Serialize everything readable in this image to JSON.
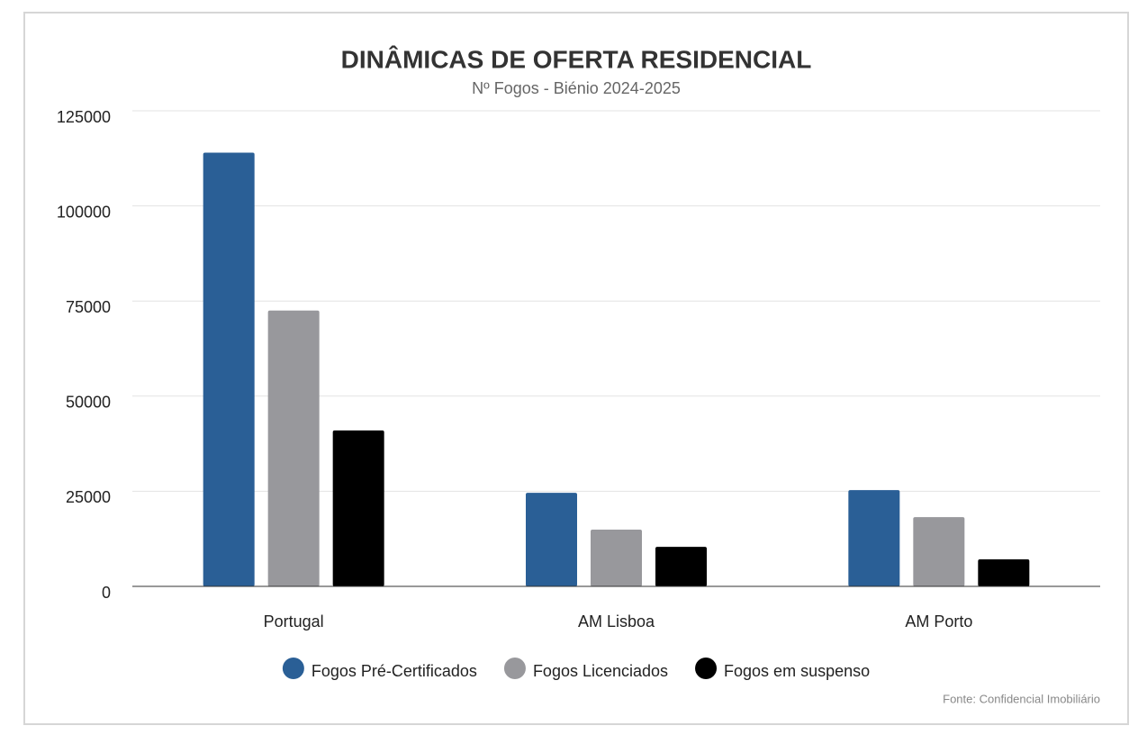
{
  "chart_data": {
    "type": "bar",
    "title": "DINÂMICAS DE OFERTA RESIDENCIAL",
    "subtitle": "Nº Fogos - Biénio 2024-2025",
    "categories": [
      "Portugal",
      "AM Lisboa",
      "AM Porto"
    ],
    "series": [
      {
        "name": "Fogos Pré-Certificados",
        "color": "#2a5f96",
        "values": [
          114000,
          24600,
          25300
        ]
      },
      {
        "name": "Fogos Licenciados",
        "color": "#98989c",
        "values": [
          72500,
          14900,
          18200
        ]
      },
      {
        "name": "Fogos em suspenso",
        "color": "#000000",
        "values": [
          41000,
          10400,
          7100
        ]
      }
    ],
    "ylim": [
      0,
      125000
    ],
    "yticks": [
      0,
      25000,
      50000,
      75000,
      100000,
      125000
    ],
    "grid": true,
    "legend": "bottom",
    "source": "Fonte: Confidencial Imobiliário"
  }
}
